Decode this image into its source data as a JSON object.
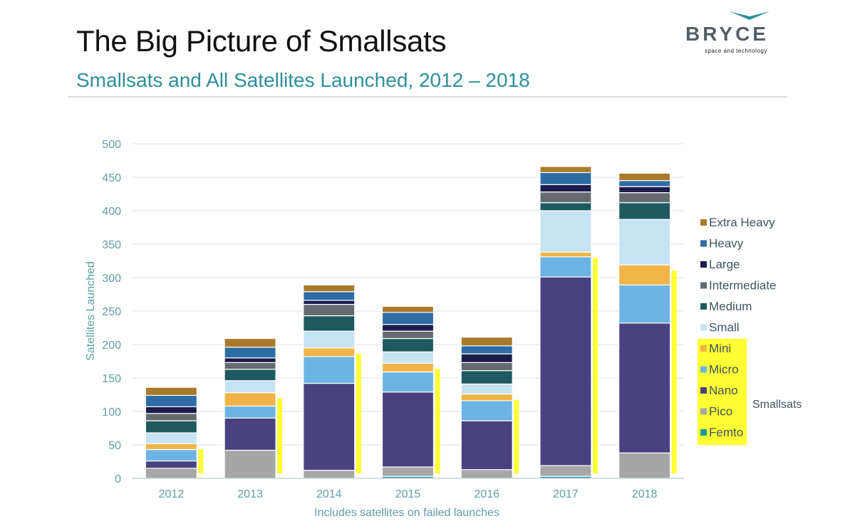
{
  "slide": {
    "title": "The Big Picture of Smallsats",
    "subtitle": "Smallsats and All Satellites Launched, 2012 – 2018"
  },
  "logo": {
    "name": "BRYCE",
    "tagline": "space and technology",
    "color": "#555e66",
    "mark_color": "#2f8f9a"
  },
  "chart_data": {
    "type": "bar",
    "stacked": true,
    "title": "Smallsats and All Satellites Launched, 2012 – 2018",
    "xlabel": "Includes satellites on failed launches",
    "ylabel": "Satellites Launched",
    "ylim": [
      0,
      500
    ],
    "yticks": [
      0,
      50,
      100,
      150,
      200,
      250,
      300,
      350,
      400,
      450,
      500
    ],
    "grid": true,
    "legend_position": "right",
    "categories": [
      "2012",
      "2013",
      "2014",
      "2015",
      "2016",
      "2017",
      "2018"
    ],
    "series": [
      {
        "name": "Femto",
        "color": "#1b9a9a",
        "values": [
          0,
          0,
          0,
          3,
          0,
          3,
          0
        ]
      },
      {
        "name": "Pico",
        "color": "#a6a6a6",
        "values": [
          15,
          42,
          12,
          14,
          13,
          16,
          38
        ]
      },
      {
        "name": "Nano",
        "color": "#4a4180",
        "values": [
          11,
          48,
          130,
          112,
          73,
          282,
          194
        ]
      },
      {
        "name": "Micro",
        "color": "#6cb4e4",
        "values": [
          17,
          18,
          40,
          30,
          30,
          30,
          57
        ]
      },
      {
        "name": "Mini",
        "color": "#f0b447",
        "values": [
          9,
          20,
          13,
          13,
          10,
          7,
          30
        ]
      },
      {
        "name": "Small",
        "color": "#c6e3f4",
        "values": [
          16,
          18,
          25,
          17,
          15,
          62,
          68
        ]
      },
      {
        "name": "Medium",
        "color": "#1e5a5f",
        "values": [
          18,
          17,
          23,
          20,
          20,
          12,
          25
        ]
      },
      {
        "name": "Intermediate",
        "color": "#636b6f",
        "values": [
          11,
          10,
          17,
          11,
          12,
          16,
          15
        ]
      },
      {
        "name": "Large",
        "color": "#1b1c4a",
        "values": [
          10,
          7,
          6,
          10,
          13,
          11,
          9
        ]
      },
      {
        "name": "Heavy",
        "color": "#2e6da4",
        "values": [
          17,
          16,
          13,
          18,
          12,
          18,
          9
        ]
      },
      {
        "name": "Extra Heavy",
        "color": "#a87a2a",
        "values": [
          12,
          13,
          10,
          9,
          13,
          9,
          11
        ]
      }
    ],
    "annotation": {
      "label": "Smallsats",
      "highlight_color": "#ffff33",
      "covers": [
        "Femto",
        "Pico",
        "Nano",
        "Micro",
        "Mini"
      ]
    }
  }
}
